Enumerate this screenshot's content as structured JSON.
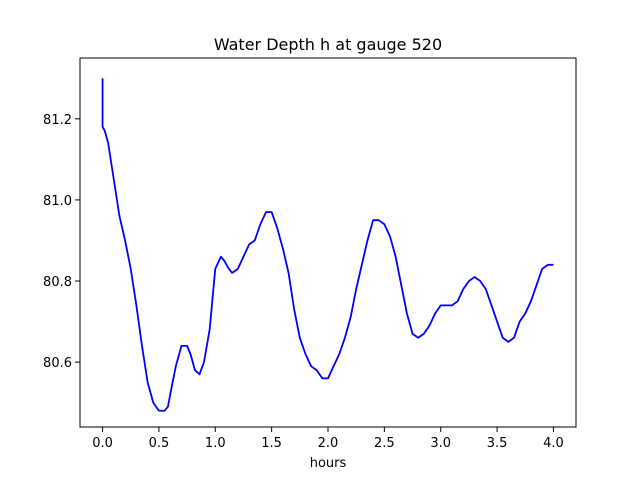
{
  "chart_data": {
    "type": "line",
    "title": "Water Depth h at gauge 520",
    "xlabel": "hours",
    "ylabel": "",
    "xlim": [
      -0.2,
      4.2
    ],
    "ylim": [
      80.44,
      81.35
    ],
    "xticks": [
      0.0,
      0.5,
      1.0,
      1.5,
      2.0,
      2.5,
      3.0,
      3.5,
      4.0
    ],
    "xtick_labels": [
      "0.0",
      "0.5",
      "1.0",
      "1.5",
      "2.0",
      "2.5",
      "3.0",
      "3.5",
      "4.0"
    ],
    "yticks": [
      80.6,
      80.8,
      81.0,
      81.2
    ],
    "ytick_labels": [
      "80.6",
      "80.8",
      "81.0",
      "81.2"
    ],
    "grid": false,
    "line_color": "#0000ff",
    "series": [
      {
        "x": [
          0.0,
          0.0,
          0.0,
          0.02,
          0.05,
          0.1,
          0.15,
          0.2,
          0.25,
          0.3,
          0.35,
          0.4,
          0.45,
          0.5,
          0.55,
          0.58,
          0.6,
          0.65,
          0.7,
          0.75,
          0.78,
          0.82,
          0.86,
          0.9,
          0.95,
          1.0,
          1.05,
          1.08,
          1.12,
          1.15,
          1.2,
          1.25,
          1.3,
          1.35,
          1.4,
          1.45,
          1.5,
          1.55,
          1.6,
          1.65,
          1.7,
          1.75,
          1.8,
          1.85,
          1.9,
          1.95,
          2.0,
          2.05,
          2.1,
          2.15,
          2.2,
          2.25,
          2.3,
          2.35,
          2.4,
          2.45,
          2.5,
          2.55,
          2.6,
          2.65,
          2.7,
          2.75,
          2.8,
          2.85,
          2.9,
          2.95,
          3.0,
          3.05,
          3.1,
          3.15,
          3.2,
          3.25,
          3.3,
          3.35,
          3.4,
          3.45,
          3.5,
          3.55,
          3.6,
          3.65,
          3.7,
          3.75,
          3.8,
          3.85,
          3.9,
          3.95,
          4.0
        ],
        "y": [
          81.3,
          81.18,
          81.18,
          81.17,
          81.14,
          81.05,
          80.96,
          80.9,
          80.83,
          80.74,
          80.64,
          80.55,
          80.5,
          80.48,
          80.48,
          80.49,
          80.52,
          80.59,
          80.64,
          80.64,
          80.62,
          80.58,
          80.57,
          80.6,
          80.68,
          80.83,
          80.86,
          80.85,
          80.83,
          80.82,
          80.83,
          80.86,
          80.89,
          80.9,
          80.94,
          80.97,
          80.97,
          80.93,
          80.88,
          80.82,
          80.73,
          80.66,
          80.62,
          80.59,
          80.58,
          80.56,
          80.56,
          80.59,
          80.62,
          80.66,
          80.71,
          80.78,
          80.84,
          80.9,
          80.95,
          80.95,
          80.94,
          80.91,
          80.86,
          80.79,
          80.72,
          80.67,
          80.66,
          80.67,
          80.69,
          80.72,
          80.74,
          80.74,
          80.74,
          80.75,
          80.78,
          80.8,
          80.81,
          80.8,
          80.78,
          80.74,
          80.7,
          80.66,
          80.65,
          80.66,
          80.7,
          80.72,
          80.75,
          80.79,
          80.83,
          80.84,
          80.84
        ]
      }
    ]
  }
}
